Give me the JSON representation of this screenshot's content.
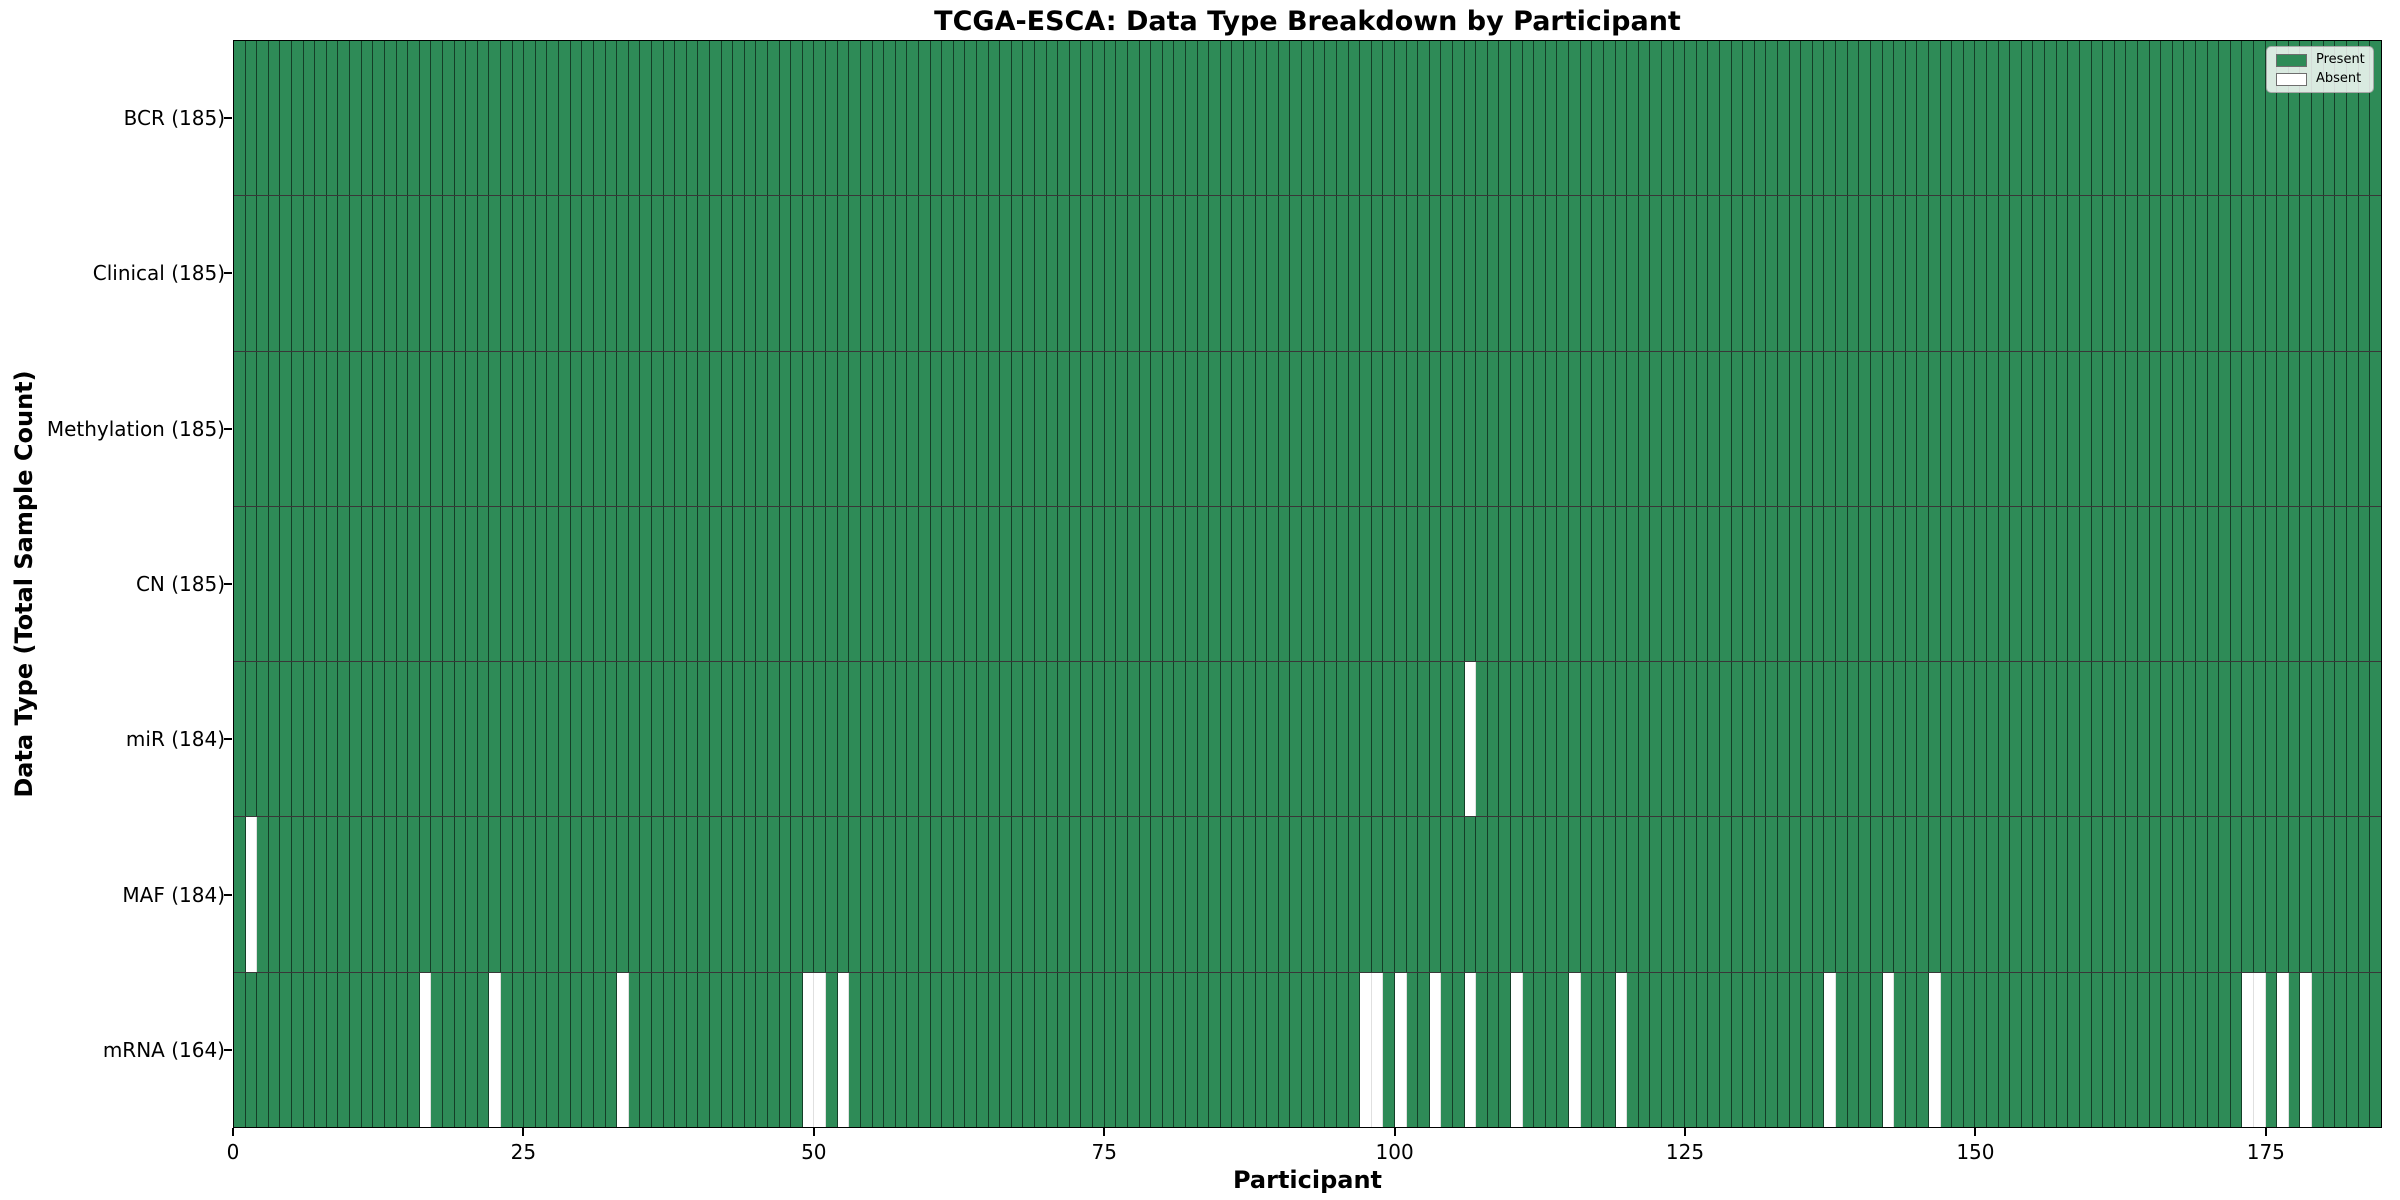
{
  "chart_data": {
    "type": "heatmap",
    "title": "TCGA-ESCA: Data Type Breakdown by Participant",
    "xlabel": "Participant",
    "ylabel": "Data Type (Total Sample Count)",
    "n_participants": 185,
    "x_ticks": [
      0,
      25,
      50,
      75,
      100,
      125,
      150,
      175
    ],
    "x_range": [
      0,
      185
    ],
    "grid": false,
    "colors": {
      "present": "#2e8b57",
      "absent": "#ffffff",
      "bar_edge": "rgba(0,0,0,0.55)"
    },
    "legend": {
      "position": "upper-right",
      "entries": [
        {
          "label": "Present",
          "color": "#2e8b57"
        },
        {
          "label": "Absent",
          "color": "#ffffff"
        }
      ]
    },
    "rows": [
      {
        "label": "BCR (185)",
        "data_type": "BCR",
        "count": 185,
        "absent_participants": []
      },
      {
        "label": "Clinical (185)",
        "data_type": "Clinical",
        "count": 185,
        "absent_participants": []
      },
      {
        "label": "Methylation (185)",
        "data_type": "Methylation",
        "count": 185,
        "absent_participants": []
      },
      {
        "label": "CN (185)",
        "data_type": "CN",
        "count": 185,
        "absent_participants": []
      },
      {
        "label": "miR (184)",
        "data_type": "miR",
        "count": 184,
        "absent_participants": [
          106
        ]
      },
      {
        "label": "MAF (184)",
        "data_type": "MAF",
        "count": 184,
        "absent_participants": [
          1
        ]
      },
      {
        "label": "mRNA (164)",
        "data_type": "mRNA",
        "count": 164,
        "absent_participants": [
          16,
          22,
          33,
          49,
          50,
          52,
          97,
          98,
          100,
          103,
          106,
          110,
          115,
          119,
          137,
          142,
          146,
          173,
          174,
          176,
          178
        ]
      }
    ]
  }
}
